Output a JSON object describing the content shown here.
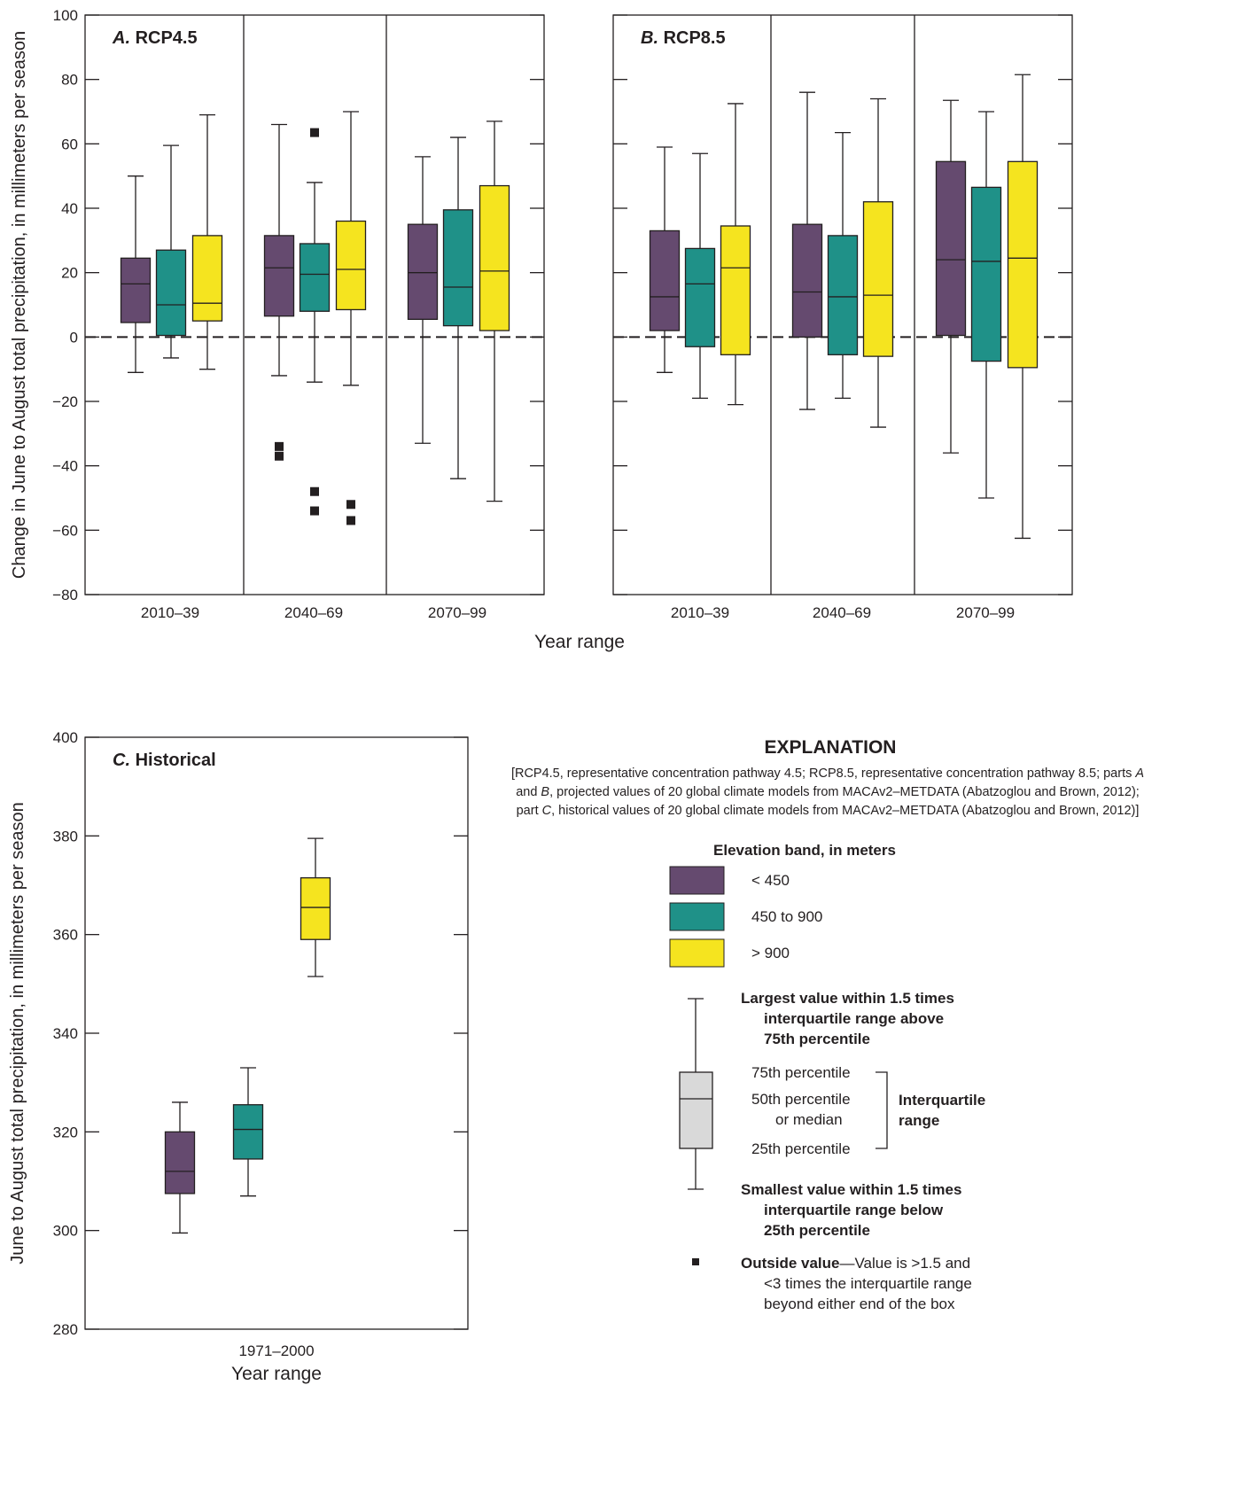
{
  "colors": {
    "purple": "#654a6f",
    "teal": "#1f9188",
    "yellow": "#f5e41f",
    "gray": "#d9d9d9",
    "ink": "#231f20"
  },
  "chart_data": [
    {
      "type": "box",
      "panel_letter": "A.",
      "title": "RCP4.5",
      "ylabel": "Change in June to August total precipitation, in millimeters per season",
      "xlabel": "Year range",
      "ylim": [
        -80,
        100
      ],
      "yticks": [
        -80,
        -60,
        -40,
        -20,
        0,
        20,
        40,
        60,
        80,
        100
      ],
      "ytick_labels": [
        "−80",
        "−60",
        "−40",
        "−20",
        "0",
        "20",
        "40",
        "60",
        "80",
        "100"
      ],
      "reference_line": 0,
      "categories": [
        "2010–39",
        "2040–69",
        "2070–99"
      ],
      "series": [
        {
          "name": "< 450",
          "boxes": [
            {
              "low": -11,
              "q1": 4.5,
              "median": 16.5,
              "q3": 24.5,
              "high": 50,
              "outliers": []
            },
            {
              "low": -12,
              "q1": 6.5,
              "median": 21.5,
              "q3": 31.5,
              "high": 66,
              "outliers": [
                -34,
                -37
              ]
            },
            {
              "low": -33,
              "q1": 5.5,
              "median": 20,
              "q3": 35,
              "high": 56,
              "outliers": []
            }
          ]
        },
        {
          "name": "450 to 900",
          "boxes": [
            {
              "low": -6.5,
              "q1": 0.5,
              "median": 10,
              "q3": 27,
              "high": 59.5,
              "outliers": []
            },
            {
              "low": -14,
              "q1": 8,
              "median": 19.5,
              "q3": 29,
              "high": 48,
              "outliers": [
                63.5,
                -48,
                -54
              ]
            },
            {
              "low": -44,
              "q1": 3.5,
              "median": 15.5,
              "q3": 39.5,
              "high": 62,
              "outliers": []
            }
          ]
        },
        {
          "name": "> 900",
          "boxes": [
            {
              "low": -10,
              "q1": 5,
              "median": 10.5,
              "q3": 31.5,
              "high": 69,
              "outliers": []
            },
            {
              "low": -15,
              "q1": 8.5,
              "median": 21,
              "q3": 36,
              "high": 70,
              "outliers": [
                -52,
                -57
              ]
            },
            {
              "low": -51,
              "q1": 2,
              "median": 20.5,
              "q3": 47,
              "high": 67,
              "outliers": []
            }
          ]
        }
      ]
    },
    {
      "type": "box",
      "panel_letter": "B.",
      "title": "RCP8.5",
      "xlabel": "",
      "ylim": [
        -80,
        100
      ],
      "reference_line": 0,
      "categories": [
        "2010–39",
        "2040–69",
        "2070–99"
      ],
      "series": [
        {
          "name": "< 450",
          "boxes": [
            {
              "low": -11,
              "q1": 2,
              "median": 12.5,
              "q3": 33,
              "high": 59,
              "outliers": []
            },
            {
              "low": -22.5,
              "q1": 0,
              "median": 14,
              "q3": 35,
              "high": 76,
              "outliers": []
            },
            {
              "low": -36,
              "q1": 0.5,
              "median": 24,
              "q3": 54.5,
              "high": 73.5,
              "outliers": []
            }
          ]
        },
        {
          "name": "450 to 900",
          "boxes": [
            {
              "low": -19,
              "q1": -3,
              "median": 16.5,
              "q3": 27.5,
              "high": 57,
              "outliers": []
            },
            {
              "low": -19,
              "q1": -5.5,
              "median": 12.5,
              "q3": 31.5,
              "high": 63.5,
              "outliers": []
            },
            {
              "low": -50,
              "q1": -7.5,
              "median": 23.5,
              "q3": 46.5,
              "high": 70,
              "outliers": []
            }
          ]
        },
        {
          "name": "> 900",
          "boxes": [
            {
              "low": -21,
              "q1": -5.5,
              "median": 21.5,
              "q3": 34.5,
              "high": 72.5,
              "outliers": []
            },
            {
              "low": -28,
              "q1": -6,
              "median": 13,
              "q3": 42,
              "high": 74,
              "outliers": []
            },
            {
              "low": -62.5,
              "q1": -9.5,
              "median": 24.5,
              "q3": 54.5,
              "high": 81.5,
              "outliers": []
            }
          ]
        }
      ]
    },
    {
      "type": "box",
      "panel_letter": "C.",
      "title": "Historical",
      "ylabel": "June to August total precipitation, in millimeters per season",
      "xlabel": "Year range",
      "ylim": [
        280,
        400
      ],
      "yticks": [
        280,
        300,
        320,
        340,
        360,
        380,
        400
      ],
      "ytick_labels": [
        "280",
        "300",
        "320",
        "340",
        "360",
        "380",
        "400"
      ],
      "categories": [
        "1971–2000"
      ],
      "series": [
        {
          "name": "< 450",
          "boxes": [
            {
              "low": 299.5,
              "q1": 307.5,
              "median": 312,
              "q3": 320,
              "high": 326,
              "outliers": []
            }
          ]
        },
        {
          "name": "450 to 900",
          "boxes": [
            {
              "low": 307,
              "q1": 314.5,
              "median": 320.5,
              "q3": 325.5,
              "high": 333,
              "outliers": []
            }
          ]
        },
        {
          "name": "> 900",
          "boxes": [
            {
              "low": 351.5,
              "q1": 359,
              "median": 365.5,
              "q3": 371.5,
              "high": 379.5,
              "outliers": []
            }
          ]
        }
      ]
    }
  ],
  "explanation": {
    "title": "EXPLANATION",
    "note_1": "[RCP4.5, representative concentration pathway 4.5; RCP8.5, representative concentration pathway 8.5; parts ",
    "note_1_a": "A",
    "note_2_pre": "and ",
    "note_2_b": "B",
    "note_2": ", projected values of 20 global climate models from MACAv2–METDATA (Abatzoglou and Brown, 2012);",
    "note_3_pre": "part ",
    "note_3_c": "C",
    "note_3": ", historical values of 20 global climate models from MACAv2–METDATA (Abatzoglou and Brown, 2012)]",
    "legend_title": "Elevation band, in meters",
    "legend": [
      "< 450",
      "450 to 900",
      "> 900"
    ],
    "largest_1": "Largest value within 1.5 times",
    "largest_2": "interquartile range above",
    "largest_3": "75th percentile",
    "p75": "75th percentile",
    "p50_1": "50th percentile",
    "p50_2": "or median",
    "p25": "25th percentile",
    "iqr_1": "Interquartile",
    "iqr_2": "range",
    "smallest_1": "Smallest value within 1.5 times",
    "smallest_2": "interquartile range below",
    "smallest_3": "25th percentile",
    "outside_bold": "Outside value",
    "outside_1": "—Value is >1.5 and",
    "outside_2": "<3 times the interquartile range",
    "outside_3": "beyond either end of the box"
  }
}
